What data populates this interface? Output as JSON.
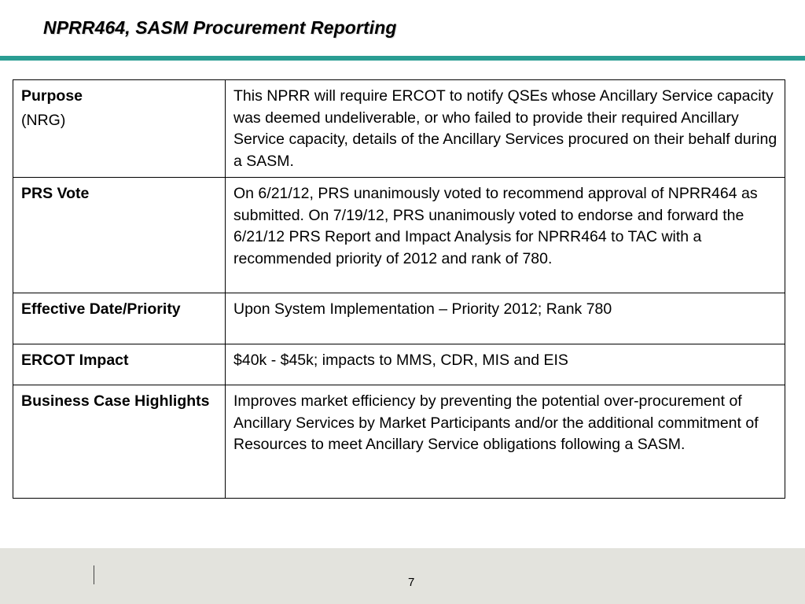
{
  "slide": {
    "title": "NPRR464, SASM Procurement Reporting",
    "accent_color": "#2a9d93",
    "footer_color": "#e3e3dd",
    "page_number": "7"
  },
  "table": {
    "rows": [
      {
        "label": "Purpose",
        "sublabel": "(NRG)",
        "content": "This NPRR will require ERCOT to notify QSEs whose Ancillary Service capacity was deemed undeliverable, or who failed to provide their required Ancillary Service capacity, details of the Ancillary Services procured on their behalf during a SASM."
      },
      {
        "label": "PRS Vote",
        "content": "On 6/21/12, PRS unanimously voted to recommend approval of NPRR464 as submitted.  On 7/19/12, PRS unanimously voted to endorse and forward the 6/21/12 PRS Report and Impact Analysis for NPRR464 to TAC with a recommended priority of 2012 and rank of 780."
      },
      {
        "label": "Effective Date/Priority",
        "content": "Upon System Implementation – Priority 2012; Rank 780"
      },
      {
        "label": "ERCOT Impact",
        "content": "$40k - $45k; impacts to MMS, CDR, MIS and EIS"
      },
      {
        "label": "Business Case Highlights",
        "content": "Improves market efficiency by preventing the potential over-procurement of Ancillary Services by Market Participants and/or the additional commitment of Resources to meet Ancillary Service obligations following a SASM."
      }
    ]
  }
}
